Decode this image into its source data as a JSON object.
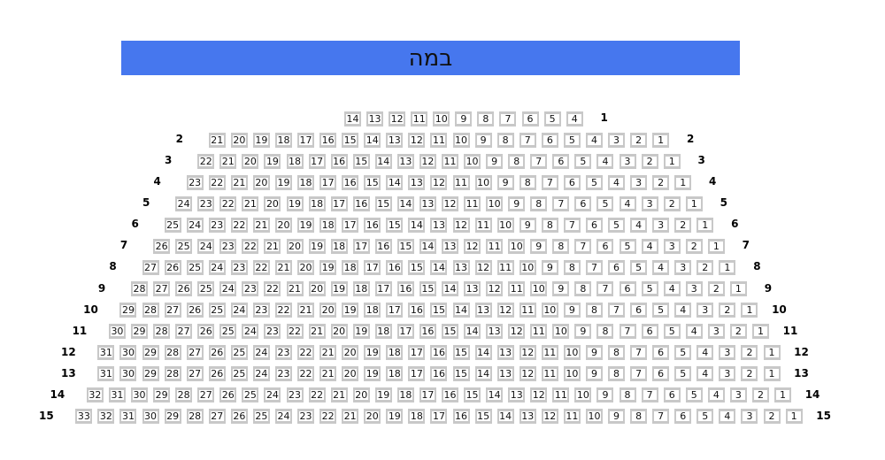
{
  "stage": {
    "label": "במה",
    "color": "#4677ee"
  },
  "seat_colors": {
    "border": "#c8c8c8",
    "fill": "#ffffff"
  },
  "rows": [
    {
      "label": "1",
      "seats": [
        14,
        13,
        12,
        11,
        10,
        9,
        8,
        7,
        6,
        5,
        4
      ],
      "left_label": false
    },
    {
      "label": "2",
      "seats": [
        21,
        20,
        19,
        18,
        17,
        16,
        15,
        14,
        13,
        12,
        11,
        10,
        9,
        8,
        7,
        6,
        5,
        4,
        3,
        2,
        1
      ]
    },
    {
      "label": "3",
      "seats": [
        22,
        21,
        20,
        19,
        18,
        17,
        16,
        15,
        14,
        13,
        12,
        11,
        10,
        9,
        8,
        7,
        6,
        5,
        4,
        3,
        2,
        1
      ]
    },
    {
      "label": "4",
      "seats": [
        23,
        22,
        21,
        20,
        19,
        18,
        17,
        16,
        15,
        14,
        13,
        12,
        11,
        10,
        9,
        8,
        7,
        6,
        5,
        4,
        3,
        2,
        1
      ]
    },
    {
      "label": "5",
      "seats": [
        24,
        23,
        22,
        21,
        20,
        19,
        18,
        17,
        16,
        15,
        14,
        13,
        12,
        11,
        10,
        9,
        8,
        7,
        6,
        5,
        4,
        3,
        2,
        1
      ]
    },
    {
      "label": "6",
      "seats": [
        25,
        24,
        23,
        22,
        21,
        20,
        19,
        18,
        17,
        16,
        15,
        14,
        13,
        12,
        11,
        10,
        9,
        8,
        7,
        6,
        5,
        4,
        3,
        2,
        1
      ]
    },
    {
      "label": "7",
      "seats": [
        26,
        25,
        24,
        23,
        22,
        21,
        20,
        19,
        18,
        17,
        16,
        15,
        14,
        13,
        12,
        11,
        10,
        9,
        8,
        7,
        6,
        5,
        4,
        3,
        2,
        1
      ]
    },
    {
      "label": "8",
      "seats": [
        27,
        26,
        25,
        24,
        23,
        22,
        21,
        20,
        19,
        18,
        17,
        16,
        15,
        14,
        13,
        12,
        11,
        10,
        9,
        8,
        7,
        6,
        5,
        4,
        3,
        2,
        1
      ]
    },
    {
      "label": "9",
      "seats": [
        28,
        27,
        26,
        25,
        24,
        23,
        22,
        21,
        20,
        19,
        18,
        17,
        16,
        15,
        14,
        13,
        12,
        11,
        10,
        9,
        8,
        7,
        6,
        5,
        4,
        3,
        2,
        1
      ]
    },
    {
      "label": "10",
      "seats": [
        29,
        28,
        27,
        26,
        25,
        24,
        23,
        22,
        21,
        20,
        19,
        18,
        17,
        16,
        15,
        14,
        13,
        12,
        11,
        10,
        9,
        8,
        7,
        6,
        5,
        4,
        3,
        2,
        1
      ]
    },
    {
      "label": "11",
      "seats": [
        30,
        29,
        28,
        27,
        26,
        25,
        24,
        23,
        22,
        21,
        20,
        19,
        18,
        17,
        16,
        15,
        14,
        13,
        12,
        11,
        10,
        9,
        8,
        7,
        6,
        5,
        4,
        3,
        2,
        1
      ]
    },
    {
      "label": "12",
      "seats": [
        31,
        30,
        29,
        28,
        27,
        26,
        25,
        24,
        23,
        22,
        21,
        20,
        19,
        18,
        17,
        16,
        15,
        14,
        13,
        12,
        11,
        10,
        9,
        8,
        7,
        6,
        5,
        4,
        3,
        2,
        1
      ]
    },
    {
      "label": "13",
      "seats": [
        31,
        30,
        29,
        28,
        27,
        26,
        25,
        24,
        23,
        22,
        21,
        20,
        19,
        18,
        17,
        16,
        15,
        14,
        13,
        12,
        11,
        10,
        9,
        8,
        7,
        6,
        5,
        4,
        3,
        2,
        1
      ]
    },
    {
      "label": "14",
      "seats": [
        32,
        31,
        30,
        29,
        28,
        27,
        26,
        25,
        24,
        23,
        22,
        21,
        20,
        19,
        18,
        17,
        16,
        15,
        14,
        13,
        12,
        11,
        10,
        9,
        8,
        7,
        6,
        5,
        4,
        3,
        2,
        1
      ]
    },
    {
      "label": "15",
      "seats": [
        33,
        32,
        31,
        30,
        29,
        28,
        27,
        26,
        25,
        24,
        23,
        22,
        21,
        20,
        19,
        18,
        17,
        16,
        15,
        14,
        13,
        12,
        11,
        10,
        9,
        8,
        7,
        6,
        5,
        4,
        3,
        2,
        1
      ]
    }
  ]
}
